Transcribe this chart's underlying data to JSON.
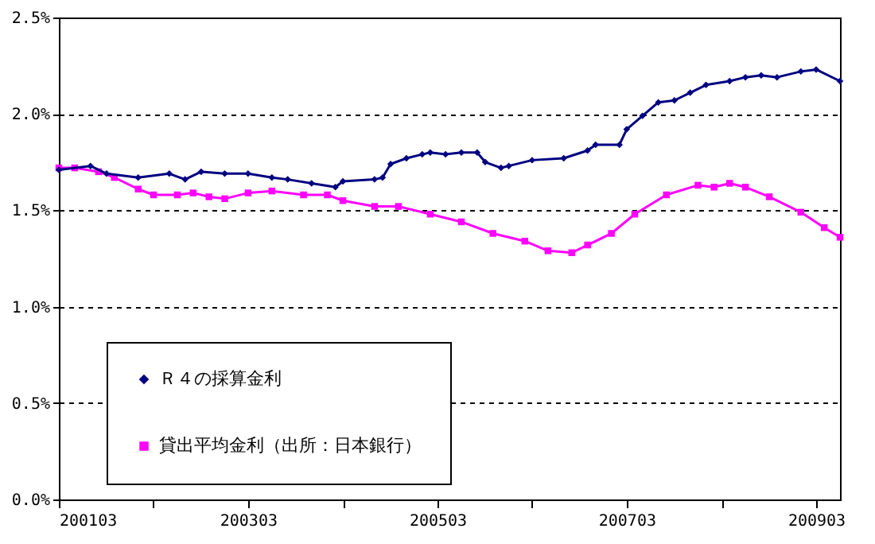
{
  "chart_data": {
    "type": "line",
    "series": [
      {
        "name": "Ｒ４の採算金利",
        "color": "#000080",
        "marker": "diamond",
        "x": [
          "2001-03",
          "2001-07",
          "2001-09",
          "2002-01",
          "2002-05",
          "2002-07",
          "2002-09",
          "2002-12",
          "2003-03",
          "2003-06",
          "2003-08",
          "2003-11",
          "2004-02",
          "2004-03",
          "2004-07",
          "2004-08",
          "2004-09",
          "2004-11",
          "2005-01",
          "2005-02",
          "2005-04",
          "2005-06",
          "2005-08",
          "2005-09",
          "2005-11",
          "2005-12",
          "2006-03",
          "2006-07",
          "2006-10",
          "2006-11",
          "2007-02",
          "2007-03",
          "2007-05",
          "2007-07",
          "2007-09",
          "2007-11",
          "2008-01",
          "2008-04",
          "2008-06",
          "2008-08",
          "2008-10",
          "2009-01",
          "2009-03",
          "2009-06"
        ],
        "values": [
          1.71,
          1.73,
          1.69,
          1.67,
          1.69,
          1.66,
          1.7,
          1.69,
          1.69,
          1.67,
          1.66,
          1.64,
          1.62,
          1.65,
          1.66,
          1.67,
          1.74,
          1.77,
          1.79,
          1.8,
          1.79,
          1.8,
          1.8,
          1.75,
          1.72,
          1.73,
          1.76,
          1.77,
          1.81,
          1.84,
          1.84,
          1.92,
          1.99,
          2.06,
          2.07,
          2.11,
          2.15,
          2.17,
          2.19,
          2.2,
          2.19,
          2.22,
          2.23,
          2.17
        ]
      },
      {
        "name": "貸出平均金利（出所：日本銀行）",
        "color": "#ff00ff",
        "marker": "square",
        "x": [
          "2001-03",
          "2001-05",
          "2001-08",
          "2001-10",
          "2002-01",
          "2002-03",
          "2002-06",
          "2002-08",
          "2002-10",
          "2002-12",
          "2003-03",
          "2003-06",
          "2003-10",
          "2004-01",
          "2004-03",
          "2004-07",
          "2004-10",
          "2005-02",
          "2005-06",
          "2005-10",
          "2006-02",
          "2006-05",
          "2006-08",
          "2006-10",
          "2007-01",
          "2007-04",
          "2007-08",
          "2007-12",
          "2008-02",
          "2008-04",
          "2008-06",
          "2008-09",
          "2009-01",
          "2009-04",
          "2009-06"
        ],
        "values": [
          1.72,
          1.72,
          1.7,
          1.67,
          1.61,
          1.58,
          1.58,
          1.59,
          1.57,
          1.56,
          1.59,
          1.6,
          1.58,
          1.58,
          1.55,
          1.52,
          1.52,
          1.48,
          1.44,
          1.38,
          1.34,
          1.29,
          1.28,
          1.32,
          1.38,
          1.48,
          1.58,
          1.63,
          1.62,
          1.64,
          1.62,
          1.57,
          1.49,
          1.41,
          1.36
        ]
      }
    ],
    "xlim": [
      "2001-03",
      "2009-06"
    ],
    "xticks": [
      {
        "value": "2001-03",
        "label": "200103"
      },
      {
        "value": "2002-03",
        "label": null
      },
      {
        "value": "2003-03",
        "label": "200303"
      },
      {
        "value": "2004-03",
        "label": null
      },
      {
        "value": "2005-03",
        "label": "200503"
      },
      {
        "value": "2006-03",
        "label": null
      },
      {
        "value": "2007-03",
        "label": "200703"
      },
      {
        "value": "2008-03",
        "label": null
      },
      {
        "value": "2009-03",
        "label": "200903"
      }
    ],
    "ylim": [
      0,
      2.5
    ],
    "yticks": [
      {
        "value": 0,
        "label": "0.0%"
      },
      {
        "value": 0.5,
        "label": "0.5%"
      },
      {
        "value": 1,
        "label": "1.0%"
      },
      {
        "value": 1.5,
        "label": "1.5%"
      },
      {
        "value": 2,
        "label": "2.0%"
      },
      {
        "value": 2.5,
        "label": "2.5%"
      }
    ],
    "grid": "y",
    "legend": "bottom left",
    "line_style": "solid"
  }
}
